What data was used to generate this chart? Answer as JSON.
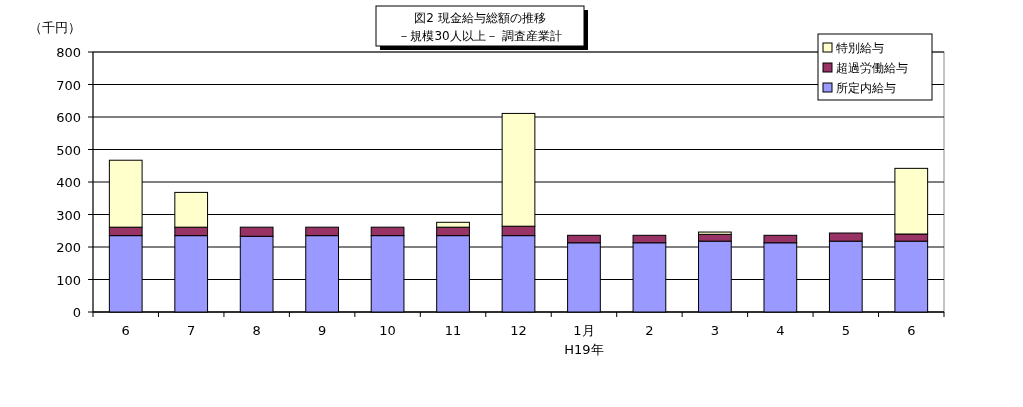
{
  "chart_data": {
    "type": "bar",
    "stacked": true,
    "title": "図2  現金給与総額の推移",
    "subtitle": "－規模30人以上－  調査産業計",
    "ylabel": "（千円）",
    "categories": [
      "6",
      "7",
      "8",
      "9",
      "10",
      "11",
      "12",
      "1月",
      "2",
      "3",
      "4",
      "5",
      "6"
    ],
    "series": [
      {
        "name": "所定内給与",
        "color": "#9999ff",
        "values": [
          235,
          235,
          233,
          235,
          235,
          235,
          235,
          213,
          213,
          218,
          213,
          218,
          218
        ]
      },
      {
        "name": "超過労働給与",
        "color": "#993366",
        "values": [
          26,
          26,
          28,
          26,
          26,
          26,
          29,
          23,
          23,
          21,
          23,
          25,
          22
        ]
      },
      {
        "name": "特別給与",
        "color": "#ffffcc",
        "values": [
          206,
          107,
          0,
          0,
          0,
          15,
          347,
          0,
          0,
          7,
          0,
          0,
          202
        ]
      }
    ],
    "ylim": [
      0,
      800
    ],
    "yticks": [
      0,
      100,
      200,
      300,
      400,
      500,
      600,
      700,
      800
    ],
    "grid": "y",
    "legend": "top right",
    "annotations": [
      "H19年"
    ]
  }
}
